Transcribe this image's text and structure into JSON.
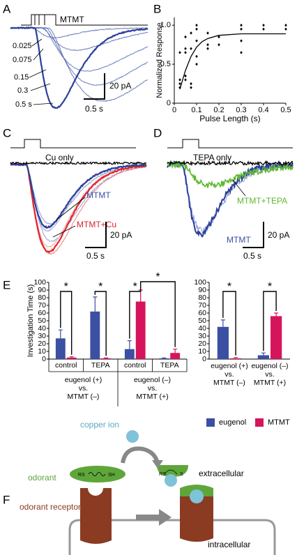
{
  "panel_a": {
    "label": "A",
    "stimulus": "MTMT",
    "pulse_labels": [
      "0.025",
      "0.075",
      "0.15",
      "0.3",
      "0.5 s"
    ],
    "scale_y": "20 pA",
    "scale_x": "0.5 s"
  },
  "panel_b": {
    "label": "B"
  },
  "panel_c": {
    "label": "C",
    "control_label": "Cu only",
    "trace_labels": [
      "MTMT",
      "MTMT+Cu"
    ],
    "scale_y": "20 pA",
    "scale_x": "0.5 s"
  },
  "panel_d": {
    "label": "D",
    "control_label": "TEPA only",
    "trace_labels": [
      "MTMT+TEPA",
      "MTMT"
    ],
    "scale_y": "20 pA",
    "scale_x": "0.5 s"
  },
  "panel_e": {
    "label": "E"
  },
  "panel_f": {
    "label": "F",
    "copper": "copper ion",
    "odorant": "odorant",
    "extracellular": "extracellular",
    "receptor": "odorant receptor",
    "intracellular": "intracellular",
    "thiol": [
      "RS",
      "SH"
    ],
    "complex": [
      "RS",
      "S"
    ]
  },
  "chart_data": [
    {
      "type": "scatter",
      "xlabel": "Pulse Length (s)",
      "ylabel": "Normalized Response",
      "xlim": [
        0,
        0.5
      ],
      "ylim": [
        0,
        1.1
      ],
      "xticks": [
        0,
        0.1,
        0.2,
        0.3,
        0.4,
        0.5
      ],
      "yticks": [
        0,
        0.5,
        {
          "value": 1,
          "label": "1.0"
        }
      ],
      "color": "#000000",
      "x": [
        0.025,
        0.025,
        0.025,
        0.025,
        0.05,
        0.05,
        0.05,
        0.05,
        0.05,
        0.075,
        0.075,
        0.075,
        0.075,
        0.1,
        0.1,
        0.1,
        0.1,
        0.1,
        0.15,
        0.15,
        0.15,
        0.2,
        0.2,
        0.3,
        0.3,
        0.3,
        0.3,
        0.4,
        0.4,
        0.5,
        0.5
      ],
      "values": [
        0.65,
        0.3,
        0.25,
        0.2,
        0.85,
        0.7,
        0.65,
        0.35,
        0.3,
        0.9,
        0.7,
        0.25,
        0.2,
        1.0,
        0.95,
        0.8,
        0.6,
        0.5,
        0.9,
        0.75,
        0.7,
        0.85,
        0.75,
        1.0,
        0.95,
        0.8,
        0.65,
        1.0,
        0.95,
        1.0,
        0.95
      ],
      "fit": {
        "x": [
          0.025,
          0.05,
          0.075,
          0.1,
          0.125,
          0.15,
          0.2,
          0.3,
          0.4,
          0.5
        ],
        "values": [
          0.18,
          0.42,
          0.6,
          0.72,
          0.79,
          0.83,
          0.87,
          0.89,
          0.89,
          0.89
        ]
      }
    },
    {
      "type": "bar",
      "ylabel": "Investigation Time (s)",
      "ylim": [
        0,
        100
      ],
      "yticks": [
        0,
        10,
        20,
        30,
        40,
        50,
        60,
        70,
        80,
        90,
        100
      ],
      "categories": [
        "control",
        "TEPA",
        "control",
        "TEPA"
      ],
      "group_labels": [
        [
          "eugenol (+)",
          "vs.",
          "MTMT (–)"
        ],
        [
          "eugenol (–)",
          "vs.",
          "MTMT (+)"
        ]
      ],
      "series": [
        {
          "color": "#3b4fa3",
          "values": [
            27,
            62,
            13,
            1
          ],
          "errors": [
            11,
            19,
            11,
            0.5
          ]
        },
        {
          "color": "#d6145c",
          "values": [
            2,
            1,
            75,
            8
          ],
          "errors": [
            1,
            0.5,
            15,
            5
          ]
        }
      ],
      "significance": [
        "*",
        "*",
        "*",
        "*"
      ]
    },
    {
      "type": "bar",
      "ylim": [
        0,
        100
      ],
      "yticks": [
        0,
        10,
        20,
        30,
        40,
        50,
        60,
        70,
        80,
        90,
        100
      ],
      "categories": [
        [
          "eugenol (+)",
          "vs.",
          "MTMT (–)"
        ],
        [
          "eugenol (–)",
          "vs.",
          "MTMT (+)"
        ]
      ],
      "series": [
        {
          "name": "eugenol",
          "color": "#3b4fa3",
          "values": [
            42,
            5
          ],
          "errors": [
            9,
            3
          ]
        },
        {
          "name": "MTMT",
          "color": "#d6145c",
          "values": [
            1,
            56
          ],
          "errors": [
            1,
            4
          ]
        }
      ],
      "significance": [
        "*",
        "*"
      ]
    }
  ]
}
